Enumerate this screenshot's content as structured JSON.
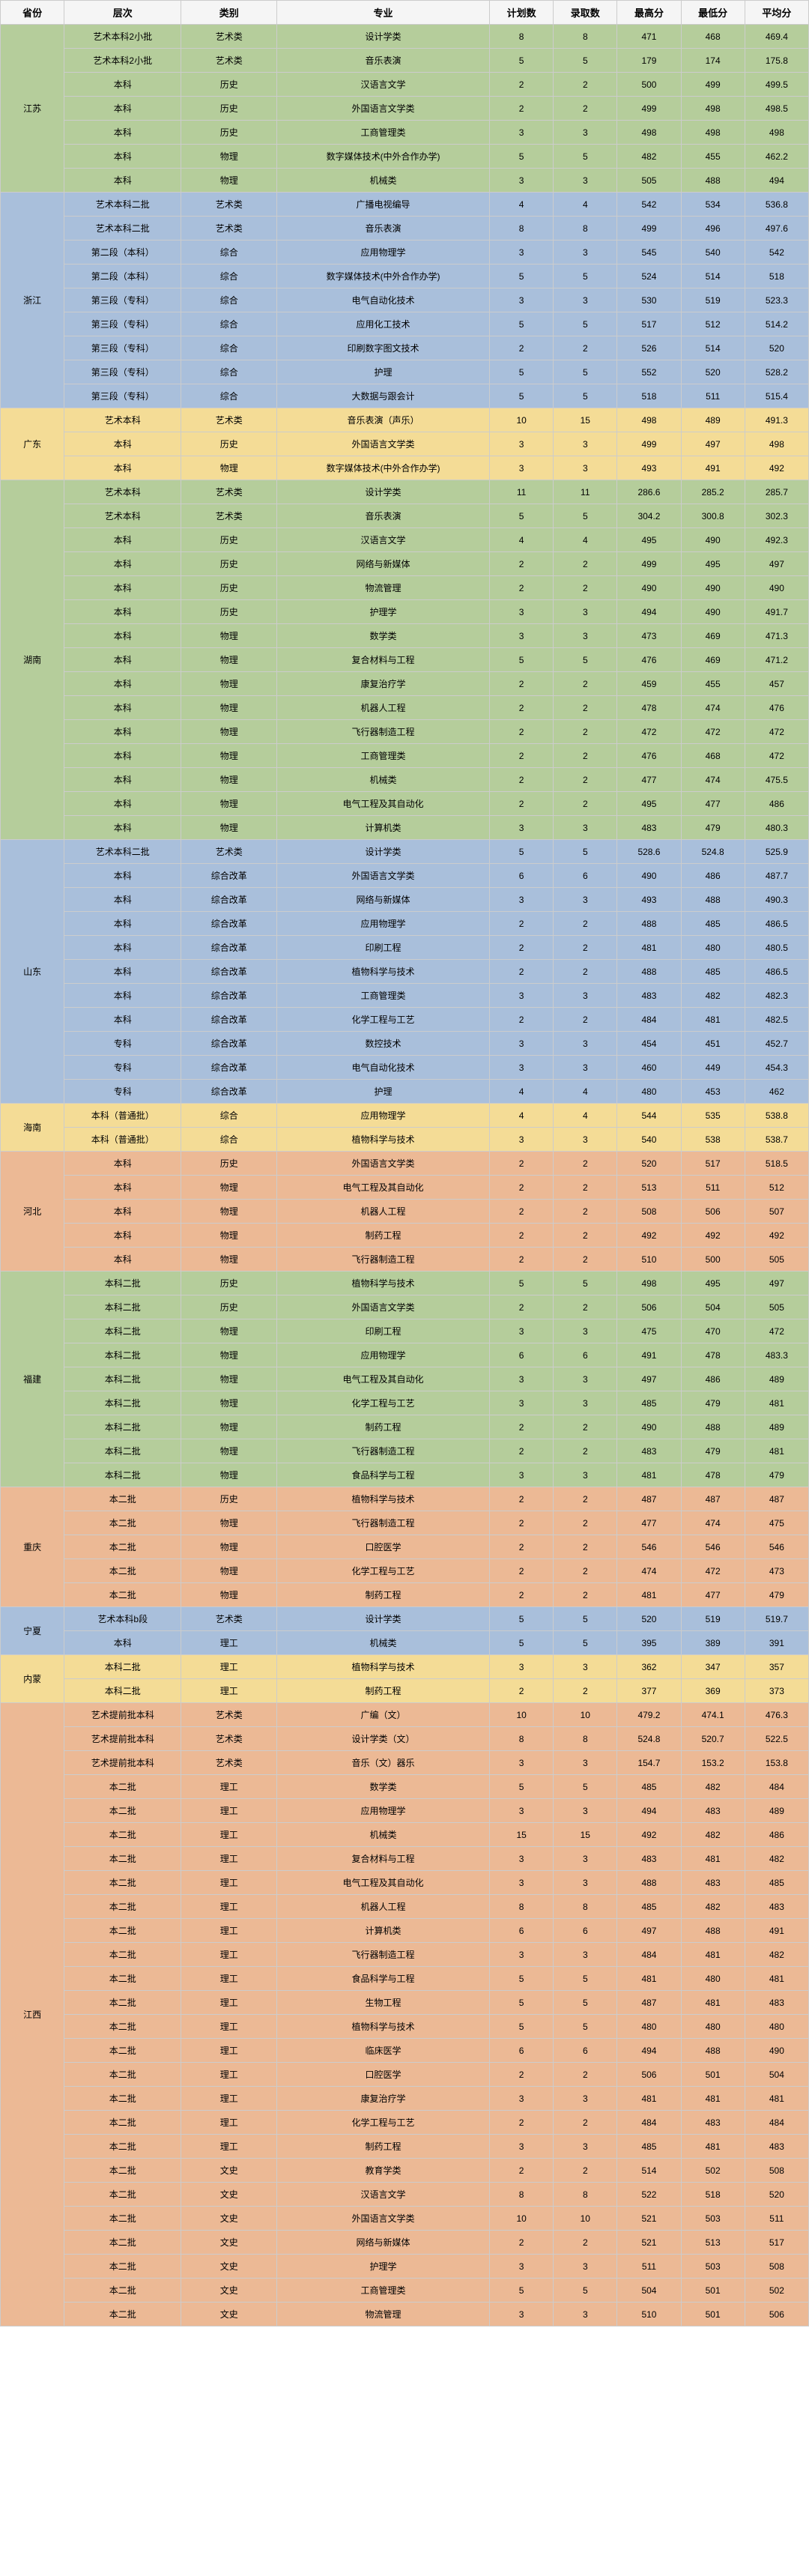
{
  "headers": [
    "省份",
    "层次",
    "类别",
    "专业",
    "计划数",
    "录取数",
    "最高分",
    "最低分",
    "平均分"
  ],
  "colors": {
    "green": "#b5cd9b",
    "blue": "#a9bfdb",
    "yellow": "#f4dc96",
    "orange": "#ecb995"
  },
  "provinces": [
    {
      "name": "江苏",
      "bg": "bg-green",
      "rows": [
        [
          "艺术本科2小批",
          "艺术类",
          "设计学类",
          "8",
          "8",
          "471",
          "468",
          "469.4"
        ],
        [
          "艺术本科2小批",
          "艺术类",
          "音乐表演",
          "5",
          "5",
          "179",
          "174",
          "175.8"
        ],
        [
          "本科",
          "历史",
          "汉语言文学",
          "2",
          "2",
          "500",
          "499",
          "499.5"
        ],
        [
          "本科",
          "历史",
          "外国语言文学类",
          "2",
          "2",
          "499",
          "498",
          "498.5"
        ],
        [
          "本科",
          "历史",
          "工商管理类",
          "3",
          "3",
          "498",
          "498",
          "498"
        ],
        [
          "本科",
          "物理",
          "数字媒体技术(中外合作办学)",
          "5",
          "5",
          "482",
          "455",
          "462.2"
        ],
        [
          "本科",
          "物理",
          "机械类",
          "3",
          "3",
          "505",
          "488",
          "494"
        ]
      ]
    },
    {
      "name": "浙江",
      "bg": "bg-blue",
      "rows": [
        [
          "艺术本科二批",
          "艺术类",
          "广播电视编导",
          "4",
          "4",
          "542",
          "534",
          "536.8"
        ],
        [
          "艺术本科二批",
          "艺术类",
          "音乐表演",
          "8",
          "8",
          "499",
          "496",
          "497.6"
        ],
        [
          "第二段（本科）",
          "综合",
          "应用物理学",
          "3",
          "3",
          "545",
          "540",
          "542"
        ],
        [
          "第二段（本科）",
          "综合",
          "数字媒体技术(中外合作办学)",
          "5",
          "5",
          "524",
          "514",
          "518"
        ],
        [
          "第三段（专科）",
          "综合",
          "电气自动化技术",
          "3",
          "3",
          "530",
          "519",
          "523.3"
        ],
        [
          "第三段（专科）",
          "综合",
          "应用化工技术",
          "5",
          "5",
          "517",
          "512",
          "514.2"
        ],
        [
          "第三段（专科）",
          "综合",
          "印刷数字图文技术",
          "2",
          "2",
          "526",
          "514",
          "520"
        ],
        [
          "第三段（专科）",
          "综合",
          "护理",
          "5",
          "5",
          "552",
          "520",
          "528.2"
        ],
        [
          "第三段（专科）",
          "综合",
          "大数据与跟会计",
          "5",
          "5",
          "518",
          "511",
          "515.4"
        ]
      ]
    },
    {
      "name": "广东",
      "bg": "bg-yellow",
      "rows": [
        [
          "艺术本科",
          "艺术类",
          "音乐表演（声乐）",
          "10",
          "15",
          "498",
          "489",
          "491.3"
        ],
        [
          "本科",
          "历史",
          "外国语言文学类",
          "3",
          "3",
          "499",
          "497",
          "498"
        ],
        [
          "本科",
          "物理",
          "数字媒体技术(中外合作办学)",
          "3",
          "3",
          "493",
          "491",
          "492"
        ]
      ]
    },
    {
      "name": "湖南",
      "bg": "bg-green",
      "rows": [
        [
          "艺术本科",
          "艺术类",
          "设计学类",
          "11",
          "11",
          "286.6",
          "285.2",
          "285.7"
        ],
        [
          "艺术本科",
          "艺术类",
          "音乐表演",
          "5",
          "5",
          "304.2",
          "300.8",
          "302.3"
        ],
        [
          "本科",
          "历史",
          "汉语言文学",
          "4",
          "4",
          "495",
          "490",
          "492.3"
        ],
        [
          "本科",
          "历史",
          "网络与新媒体",
          "2",
          "2",
          "499",
          "495",
          "497"
        ],
        [
          "本科",
          "历史",
          "物流管理",
          "2",
          "2",
          "490",
          "490",
          "490"
        ],
        [
          "本科",
          "历史",
          "护理学",
          "3",
          "3",
          "494",
          "490",
          "491.7"
        ],
        [
          "本科",
          "物理",
          "数学类",
          "3",
          "3",
          "473",
          "469",
          "471.3"
        ],
        [
          "本科",
          "物理",
          "复合材料与工程",
          "5",
          "5",
          "476",
          "469",
          "471.2"
        ],
        [
          "本科",
          "物理",
          "康复治疗学",
          "2",
          "2",
          "459",
          "455",
          "457"
        ],
        [
          "本科",
          "物理",
          "机器人工程",
          "2",
          "2",
          "478",
          "474",
          "476"
        ],
        [
          "本科",
          "物理",
          "飞行器制造工程",
          "2",
          "2",
          "472",
          "472",
          "472"
        ],
        [
          "本科",
          "物理",
          "工商管理类",
          "2",
          "2",
          "476",
          "468",
          "472"
        ],
        [
          "本科",
          "物理",
          "机械类",
          "2",
          "2",
          "477",
          "474",
          "475.5"
        ],
        [
          "本科",
          "物理",
          "电气工程及其自动化",
          "2",
          "2",
          "495",
          "477",
          "486"
        ],
        [
          "本科",
          "物理",
          "计算机类",
          "3",
          "3",
          "483",
          "479",
          "480.3"
        ]
      ]
    },
    {
      "name": "山东",
      "bg": "bg-blue",
      "rows": [
        [
          "艺术本科二批",
          "艺术类",
          "设计学类",
          "5",
          "5",
          "528.6",
          "524.8",
          "525.9"
        ],
        [
          "本科",
          "综合改革",
          "外国语言文学类",
          "6",
          "6",
          "490",
          "486",
          "487.7"
        ],
        [
          "本科",
          "综合改革",
          "网络与新媒体",
          "3",
          "3",
          "493",
          "488",
          "490.3"
        ],
        [
          "本科",
          "综合改革",
          "应用物理学",
          "2",
          "2",
          "488",
          "485",
          "486.5"
        ],
        [
          "本科",
          "综合改革",
          "印刷工程",
          "2",
          "2",
          "481",
          "480",
          "480.5"
        ],
        [
          "本科",
          "综合改革",
          "植物科学与技术",
          "2",
          "2",
          "488",
          "485",
          "486.5"
        ],
        [
          "本科",
          "综合改革",
          "工商管理类",
          "3",
          "3",
          "483",
          "482",
          "482.3"
        ],
        [
          "本科",
          "综合改革",
          "化学工程与工艺",
          "2",
          "2",
          "484",
          "481",
          "482.5"
        ],
        [
          "专科",
          "综合改革",
          "数控技术",
          "3",
          "3",
          "454",
          "451",
          "452.7"
        ],
        [
          "专科",
          "综合改革",
          "电气自动化技术",
          "3",
          "3",
          "460",
          "449",
          "454.3"
        ],
        [
          "专科",
          "综合改革",
          "护理",
          "4",
          "4",
          "480",
          "453",
          "462"
        ]
      ]
    },
    {
      "name": "海南",
      "bg": "bg-yellow",
      "rows": [
        [
          "本科（普通批）",
          "综合",
          "应用物理学",
          "4",
          "4",
          "544",
          "535",
          "538.8"
        ],
        [
          "本科（普通批）",
          "综合",
          "植物科学与技术",
          "3",
          "3",
          "540",
          "538",
          "538.7"
        ]
      ]
    },
    {
      "name": "河北",
      "bg": "bg-orange",
      "rows": [
        [
          "本科",
          "历史",
          "外国语言文学类",
          "2",
          "2",
          "520",
          "517",
          "518.5"
        ],
        [
          "本科",
          "物理",
          "电气工程及其自动化",
          "2",
          "2",
          "513",
          "511",
          "512"
        ],
        [
          "本科",
          "物理",
          "机器人工程",
          "2",
          "2",
          "508",
          "506",
          "507"
        ],
        [
          "本科",
          "物理",
          "制药工程",
          "2",
          "2",
          "492",
          "492",
          "492"
        ],
        [
          "本科",
          "物理",
          "飞行器制造工程",
          "2",
          "2",
          "510",
          "500",
          "505"
        ]
      ]
    },
    {
      "name": "福建",
      "bg": "bg-green",
      "rows": [
        [
          "本科二批",
          "历史",
          "植物科学与技术",
          "5",
          "5",
          "498",
          "495",
          "497"
        ],
        [
          "本科二批",
          "历史",
          "外国语言文学类",
          "2",
          "2",
          "506",
          "504",
          "505"
        ],
        [
          "本科二批",
          "物理",
          "印刷工程",
          "3",
          "3",
          "475",
          "470",
          "472"
        ],
        [
          "本科二批",
          "物理",
          "应用物理学",
          "6",
          "6",
          "491",
          "478",
          "483.3"
        ],
        [
          "本科二批",
          "物理",
          "电气工程及其自动化",
          "3",
          "3",
          "497",
          "486",
          "489"
        ],
        [
          "本科二批",
          "物理",
          "化学工程与工艺",
          "3",
          "3",
          "485",
          "479",
          "481"
        ],
        [
          "本科二批",
          "物理",
          "制药工程",
          "2",
          "2",
          "490",
          "488",
          "489"
        ],
        [
          "本科二批",
          "物理",
          "飞行器制造工程",
          "2",
          "2",
          "483",
          "479",
          "481"
        ],
        [
          "本科二批",
          "物理",
          "食品科学与工程",
          "3",
          "3",
          "481",
          "478",
          "479"
        ]
      ]
    },
    {
      "name": "重庆",
      "bg": "bg-orange",
      "rows": [
        [
          "本二批",
          "历史",
          "植物科学与技术",
          "2",
          "2",
          "487",
          "487",
          "487"
        ],
        [
          "本二批",
          "物理",
          "飞行器制造工程",
          "2",
          "2",
          "477",
          "474",
          "475"
        ],
        [
          "本二批",
          "物理",
          "口腔医学",
          "2",
          "2",
          "546",
          "546",
          "546"
        ],
        [
          "本二批",
          "物理",
          "化学工程与工艺",
          "2",
          "2",
          "474",
          "472",
          "473"
        ],
        [
          "本二批",
          "物理",
          "制药工程",
          "2",
          "2",
          "481",
          "477",
          "479"
        ]
      ]
    },
    {
      "name": "宁夏",
      "bg": "bg-blue",
      "rows": [
        [
          "艺术本科b段",
          "艺术类",
          "设计学类",
          "5",
          "5",
          "520",
          "519",
          "519.7"
        ],
        [
          "本科",
          "理工",
          "机械类",
          "5",
          "5",
          "395",
          "389",
          "391"
        ]
      ]
    },
    {
      "name": "内蒙",
      "bg": "bg-yellow",
      "rows": [
        [
          "本科二批",
          "理工",
          "植物科学与技术",
          "3",
          "3",
          "362",
          "347",
          "357"
        ],
        [
          "本科二批",
          "理工",
          "制药工程",
          "2",
          "2",
          "377",
          "369",
          "373"
        ]
      ]
    },
    {
      "name": "江西",
      "bg": "bg-orange",
      "rows": [
        [
          "艺术提前批本科",
          "艺术类",
          "广编（文）",
          "10",
          "10",
          "479.2",
          "474.1",
          "476.3"
        ],
        [
          "艺术提前批本科",
          "艺术类",
          "设计学类（文）",
          "8",
          "8",
          "524.8",
          "520.7",
          "522.5"
        ],
        [
          "艺术提前批本科",
          "艺术类",
          "音乐（文）器乐",
          "3",
          "3",
          "154.7",
          "153.2",
          "153.8"
        ],
        [
          "本二批",
          "理工",
          "数学类",
          "5",
          "5",
          "485",
          "482",
          "484"
        ],
        [
          "本二批",
          "理工",
          "应用物理学",
          "3",
          "3",
          "494",
          "483",
          "489"
        ],
        [
          "本二批",
          "理工",
          "机械类",
          "15",
          "15",
          "492",
          "482",
          "486"
        ],
        [
          "本二批",
          "理工",
          "复合材料与工程",
          "3",
          "3",
          "483",
          "481",
          "482"
        ],
        [
          "本二批",
          "理工",
          "电气工程及其自动化",
          "3",
          "3",
          "488",
          "483",
          "485"
        ],
        [
          "本二批",
          "理工",
          "机器人工程",
          "8",
          "8",
          "485",
          "482",
          "483"
        ],
        [
          "本二批",
          "理工",
          "计算机类",
          "6",
          "6",
          "497",
          "488",
          "491"
        ],
        [
          "本二批",
          "理工",
          "飞行器制造工程",
          "3",
          "3",
          "484",
          "481",
          "482"
        ],
        [
          "本二批",
          "理工",
          "食品科学与工程",
          "5",
          "5",
          "481",
          "480",
          "481"
        ],
        [
          "本二批",
          "理工",
          "生物工程",
          "5",
          "5",
          "487",
          "481",
          "483"
        ],
        [
          "本二批",
          "理工",
          "植物科学与技术",
          "5",
          "5",
          "480",
          "480",
          "480"
        ],
        [
          "本二批",
          "理工",
          "临床医学",
          "6",
          "6",
          "494",
          "488",
          "490"
        ],
        [
          "本二批",
          "理工",
          "口腔医学",
          "2",
          "2",
          "506",
          "501",
          "504"
        ],
        [
          "本二批",
          "理工",
          "康复治疗学",
          "3",
          "3",
          "481",
          "481",
          "481"
        ],
        [
          "本二批",
          "理工",
          "化学工程与工艺",
          "2",
          "2",
          "484",
          "483",
          "484"
        ],
        [
          "本二批",
          "理工",
          "制药工程",
          "3",
          "3",
          "485",
          "481",
          "483"
        ],
        [
          "本二批",
          "文史",
          "教育学类",
          "2",
          "2",
          "514",
          "502",
          "508"
        ],
        [
          "本二批",
          "文史",
          "汉语言文学",
          "8",
          "8",
          "522",
          "518",
          "520"
        ],
        [
          "本二批",
          "文史",
          "外国语言文学类",
          "10",
          "10",
          "521",
          "503",
          "511"
        ],
        [
          "本二批",
          "文史",
          "网络与新媒体",
          "2",
          "2",
          "521",
          "513",
          "517"
        ],
        [
          "本二批",
          "文史",
          "护理学",
          "3",
          "3",
          "511",
          "503",
          "508"
        ],
        [
          "本二批",
          "文史",
          "工商管理类",
          "5",
          "5",
          "504",
          "501",
          "502"
        ],
        [
          "本二批",
          "文史",
          "物流管理",
          "3",
          "3",
          "510",
          "501",
          "506"
        ]
      ]
    }
  ]
}
